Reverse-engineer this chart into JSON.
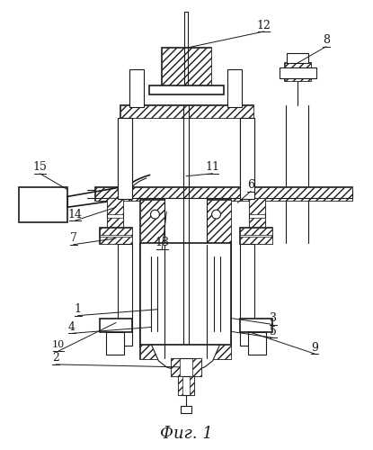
{
  "title": "Фиг. 1",
  "bg_color": "#ffffff",
  "line_color": "#1a1a1a",
  "title_fontsize": 13,
  "label_fontsize": 9,
  "figsize": [
    4.15,
    5.0
  ],
  "dpi": 100
}
